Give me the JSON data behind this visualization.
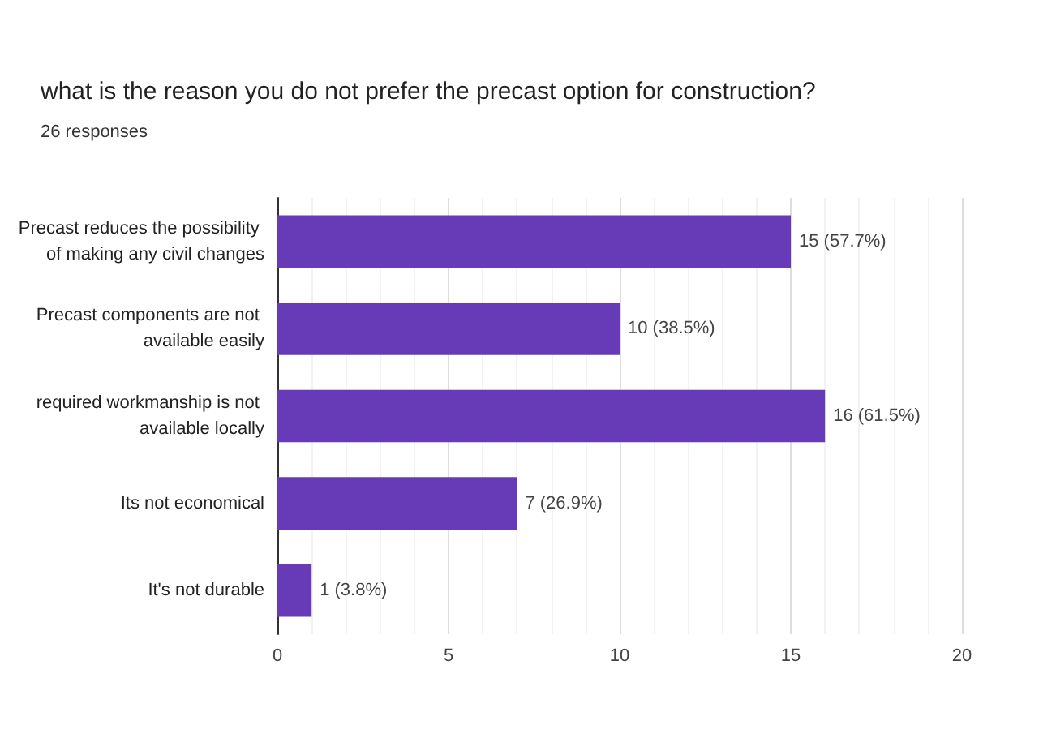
{
  "chart_data": {
    "type": "bar",
    "orientation": "horizontal",
    "title": "what is the reason you do not prefer the precast option for construction?",
    "subtitle": "26 responses",
    "categories": [
      "Precast reduces the possibility of making any civil changes",
      "Precast components are not available easily",
      "required workmanship is not available locally",
      "Its not economical",
      "It's not durable"
    ],
    "values": [
      15,
      10,
      16,
      7,
      1
    ],
    "value_labels": [
      "15 (57.7%)",
      "10 (38.5%)",
      "16 (61.5%)",
      "7 (26.9%)",
      "1 (3.8%)"
    ],
    "color": "#673ab7",
    "xlim": [
      0,
      20
    ],
    "xticks": [
      0,
      5,
      10,
      15,
      20
    ],
    "grid": "x"
  }
}
